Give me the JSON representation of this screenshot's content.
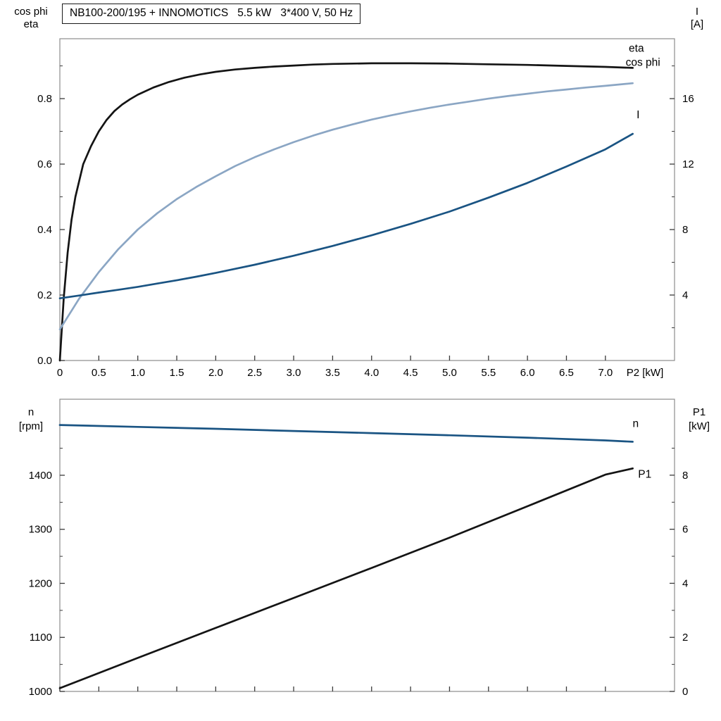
{
  "title_box": "NB100-200/195 + INNOMOTICS   5.5 kW   3*400 V, 50 Hz",
  "colors": {
    "frame": "#8c8c8c",
    "tick": "#3a3a3a",
    "text": "#000000",
    "black_curve": "#141414",
    "cos_phi_blue": "#8ba6c4",
    "dark_blue": "#1a5483"
  },
  "chart_data": [
    {
      "type": "line",
      "name": "motor-curves-top",
      "title": "NB100-200/195 + INNOMOTICS   5.5 kW   3*400 V, 50 Hz",
      "x": {
        "label": "P2 [kW]",
        "min": 0,
        "max": 7.887,
        "ticks": [
          {
            "v": 0,
            "label": "0"
          },
          {
            "v": 0.5,
            "label": "0.5"
          },
          {
            "v": 1,
            "label": "1.0"
          },
          {
            "v": 1.5,
            "label": "1.5"
          },
          {
            "v": 2,
            "label": "2.0"
          },
          {
            "v": 2.5,
            "label": "2.5"
          },
          {
            "v": 3,
            "label": "3.0"
          },
          {
            "v": 3.5,
            "label": "3.5"
          },
          {
            "v": 4,
            "label": "4.0"
          },
          {
            "v": 4.5,
            "label": "4.5"
          },
          {
            "v": 5,
            "label": "5.0"
          },
          {
            "v": 5.5,
            "label": "5.5"
          },
          {
            "v": 6,
            "label": "6.0"
          },
          {
            "v": 6.5,
            "label": "6.5"
          },
          {
            "v": 7,
            "label": "7.0"
          }
        ]
      },
      "y_left": {
        "label_lines": [
          "cos phi",
          "eta"
        ],
        "min": 0,
        "max": 0.983,
        "ticks": [
          {
            "v": 0,
            "label": "0.0"
          },
          {
            "v": 0.2,
            "label": "0.2"
          },
          {
            "v": 0.4,
            "label": "0.4"
          },
          {
            "v": 0.6,
            "label": "0.6"
          },
          {
            "v": 0.8,
            "label": "0.8"
          }
        ],
        "minor": [
          0.1,
          0.3,
          0.5,
          0.7,
          0.9
        ]
      },
      "y_right": {
        "label_lines": [
          "I",
          "[A]"
        ],
        "min": 0,
        "max": 19.66,
        "ticks": [
          {
            "v": 4,
            "label": "4"
          },
          {
            "v": 8,
            "label": "8"
          },
          {
            "v": 12,
            "label": "12"
          },
          {
            "v": 16,
            "label": "16"
          }
        ],
        "minor": [
          2,
          6,
          10,
          14,
          18
        ]
      },
      "series": [
        {
          "name": "eta",
          "axis": "left",
          "color": "#141414",
          "label": {
            "text": "eta",
            "x": 7.3,
            "y": 0.943
          },
          "points": [
            [
              0,
              0
            ],
            [
              0.05,
              0.19
            ],
            [
              0.1,
              0.33
            ],
            [
              0.15,
              0.43
            ],
            [
              0.2,
              0.5
            ],
            [
              0.3,
              0.6
            ],
            [
              0.4,
              0.655
            ],
            [
              0.5,
              0.7
            ],
            [
              0.6,
              0.735
            ],
            [
              0.7,
              0.762
            ],
            [
              0.8,
              0.782
            ],
            [
              0.9,
              0.798
            ],
            [
              1,
              0.812
            ],
            [
              1.2,
              0.834
            ],
            [
              1.4,
              0.851
            ],
            [
              1.6,
              0.864
            ],
            [
              1.8,
              0.874
            ],
            [
              2,
              0.882
            ],
            [
              2.25,
              0.889
            ],
            [
              2.5,
              0.894
            ],
            [
              2.75,
              0.898
            ],
            [
              3,
              0.901
            ],
            [
              3.25,
              0.904
            ],
            [
              3.5,
              0.906
            ],
            [
              4,
              0.908
            ],
            [
              4.5,
              0.908
            ],
            [
              5,
              0.907
            ],
            [
              5.5,
              0.905
            ],
            [
              6,
              0.903
            ],
            [
              6.5,
              0.9
            ],
            [
              7,
              0.897
            ],
            [
              7.35,
              0.894
            ]
          ]
        },
        {
          "name": "cos-phi",
          "axis": "left",
          "color": "#8ba6c4",
          "label": {
            "text": "cos phi",
            "x": 7.26,
            "y": 0.9
          },
          "points": [
            [
              0,
              0.095
            ],
            [
              0.25,
              0.19
            ],
            [
              0.5,
              0.27
            ],
            [
              0.75,
              0.34
            ],
            [
              1,
              0.4
            ],
            [
              1.25,
              0.45
            ],
            [
              1.5,
              0.493
            ],
            [
              1.75,
              0.53
            ],
            [
              2,
              0.563
            ],
            [
              2.25,
              0.594
            ],
            [
              2.5,
              0.621
            ],
            [
              2.75,
              0.645
            ],
            [
              3,
              0.667
            ],
            [
              3.25,
              0.687
            ],
            [
              3.5,
              0.705
            ],
            [
              3.75,
              0.721
            ],
            [
              4,
              0.736
            ],
            [
              4.25,
              0.749
            ],
            [
              4.5,
              0.761
            ],
            [
              4.75,
              0.772
            ],
            [
              5,
              0.782
            ],
            [
              5.25,
              0.791
            ],
            [
              5.5,
              0.8
            ],
            [
              5.75,
              0.808
            ],
            [
              6,
              0.815
            ],
            [
              6.25,
              0.822
            ],
            [
              6.5,
              0.828
            ],
            [
              6.75,
              0.834
            ],
            [
              7,
              0.839
            ],
            [
              7.35,
              0.847
            ]
          ]
        },
        {
          "name": "current",
          "axis": "right",
          "color": "#1a5483",
          "label": {
            "text": "I",
            "x": 7.4,
            "y": 14.8
          },
          "points": [
            [
              0,
              3.8
            ],
            [
              0.25,
              3.97
            ],
            [
              0.5,
              4.15
            ],
            [
              0.75,
              4.32
            ],
            [
              1,
              4.5
            ],
            [
              1.25,
              4.7
            ],
            [
              1.5,
              4.9
            ],
            [
              1.75,
              5.12
            ],
            [
              2,
              5.35
            ],
            [
              2.5,
              5.85
            ],
            [
              3,
              6.4
            ],
            [
              3.5,
              7.0
            ],
            [
              4,
              7.65
            ],
            [
              4.5,
              8.35
            ],
            [
              5,
              9.1
            ],
            [
              5.5,
              9.95
            ],
            [
              6,
              10.85
            ],
            [
              6.5,
              11.85
            ],
            [
              7,
              12.9
            ],
            [
              7.35,
              13.85
            ]
          ]
        }
      ]
    },
    {
      "type": "line",
      "name": "speed-power-bottom",
      "title": "",
      "x": {
        "label": "",
        "min": 0,
        "max": 7.887,
        "ticks": [
          {
            "v": 0
          },
          {
            "v": 0.5
          },
          {
            "v": 1
          },
          {
            "v": 1.5
          },
          {
            "v": 2
          },
          {
            "v": 2.5
          },
          {
            "v": 3
          },
          {
            "v": 3.5
          },
          {
            "v": 4
          },
          {
            "v": 4.5
          },
          {
            "v": 5
          },
          {
            "v": 5.5
          },
          {
            "v": 6
          },
          {
            "v": 6.5
          },
          {
            "v": 7
          }
        ]
      },
      "y_left": {
        "label_lines": [
          "n",
          "[rpm]"
        ],
        "min": 1000,
        "max": 1540.7,
        "ticks": [
          {
            "v": 1000,
            "label": "1000"
          },
          {
            "v": 1100,
            "label": "1100"
          },
          {
            "v": 1200,
            "label": "1200"
          },
          {
            "v": 1300,
            "label": "1300"
          },
          {
            "v": 1400,
            "label": "1400"
          }
        ],
        "minor": [
          1050,
          1150,
          1250,
          1350,
          1450
        ]
      },
      "y_right": {
        "label_lines": [
          "P1",
          "[kW]"
        ],
        "min": 0,
        "max": 10.81,
        "ticks": [
          {
            "v": 0,
            "label": "0"
          },
          {
            "v": 2,
            "label": "2"
          },
          {
            "v": 4,
            "label": "4"
          },
          {
            "v": 6,
            "label": "6"
          },
          {
            "v": 8,
            "label": "8"
          }
        ],
        "minor": [
          1,
          3,
          5,
          7,
          9
        ]
      },
      "series": [
        {
          "name": "speed",
          "axis": "left",
          "color": "#1a5483",
          "label": {
            "text": "n",
            "x": 7.35,
            "y": 1489
          },
          "points": [
            [
              0,
              1493
            ],
            [
              1,
              1489.5
            ],
            [
              2,
              1486
            ],
            [
              3,
              1482
            ],
            [
              4,
              1478
            ],
            [
              5,
              1474
            ],
            [
              6,
              1469.5
            ],
            [
              7,
              1464.5
            ],
            [
              7.35,
              1462
            ]
          ]
        },
        {
          "name": "p1",
          "axis": "right",
          "color": "#141414",
          "label": {
            "text": "P1",
            "x": 7.42,
            "y": 7.9
          },
          "points": [
            [
              0,
              0.12
            ],
            [
              1,
              1.24
            ],
            [
              2,
              2.35
            ],
            [
              3,
              3.46
            ],
            [
              4,
              4.57
            ],
            [
              5,
              5.69
            ],
            [
              6,
              6.85
            ],
            [
              7,
              8.02
            ],
            [
              7.35,
              8.25
            ]
          ]
        }
      ]
    }
  ]
}
